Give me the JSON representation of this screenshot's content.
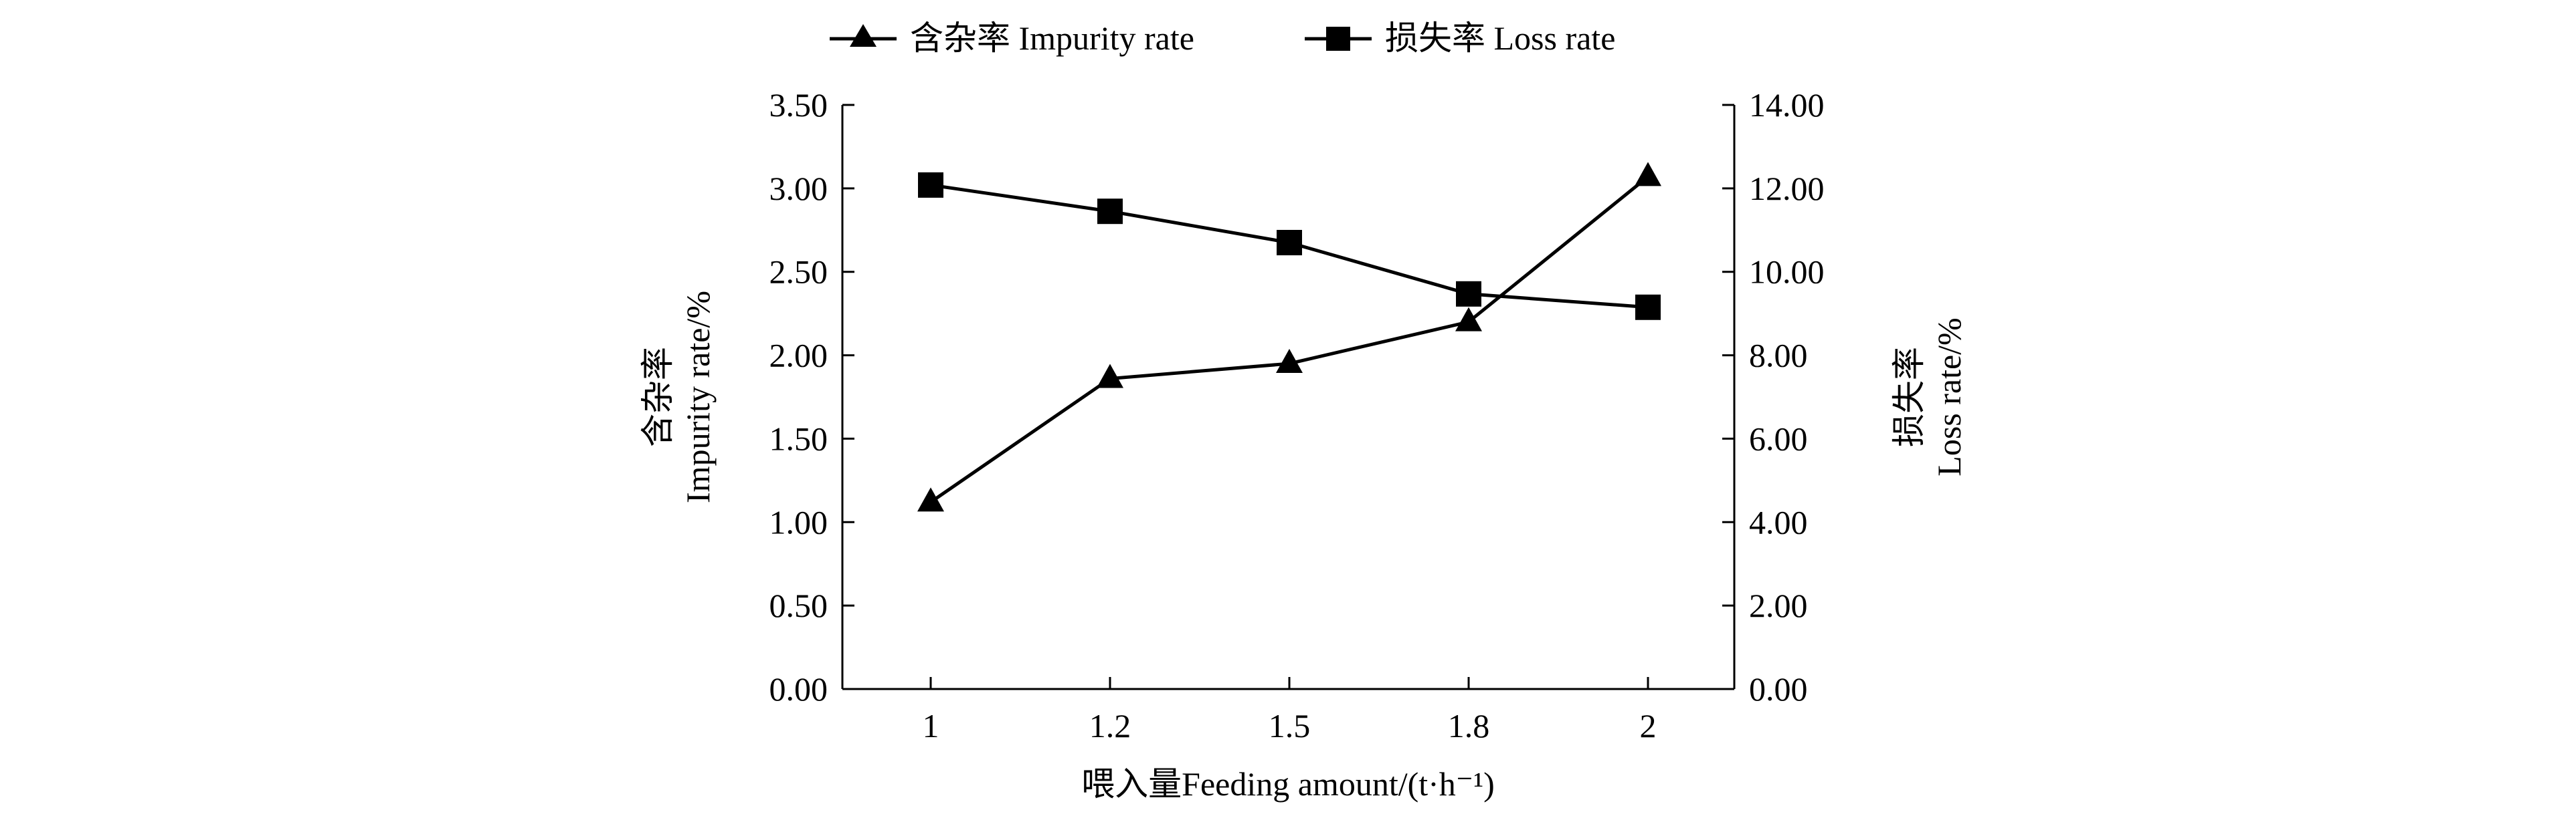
{
  "chart_data": {
    "type": "line",
    "title": "",
    "xlabel": "喂入量Feeding amount/(t·h⁻¹)",
    "ylabel_left": [
      "含杂率",
      "Impurity rate/%"
    ],
    "ylabel_right": [
      "损失率",
      "Loss rate/%"
    ],
    "categories": [
      "1",
      "1.2",
      "1.5",
      "1.8",
      "2"
    ],
    "ylim_left": [
      0,
      3.5
    ],
    "ylim_right": [
      0,
      14
    ],
    "yticks_left": [
      "0.00",
      "0.50",
      "1.00",
      "1.50",
      "2.00",
      "2.50",
      "3.00",
      "3.50"
    ],
    "yticks_right": [
      "0.00",
      "2.00",
      "4.00",
      "6.00",
      "8.00",
      "10.00",
      "12.00",
      "14.00"
    ],
    "legend_position": "top-center",
    "grid": false,
    "series": [
      {
        "name": "含杂率 Impurity rate",
        "axis": "left",
        "marker": "triangle",
        "values": [
          1.12,
          1.86,
          1.95,
          2.2,
          3.07
        ]
      },
      {
        "name": "损失率 Loss rate",
        "axis": "right",
        "marker": "square",
        "values": [
          12.08,
          11.45,
          10.7,
          9.47,
          9.15
        ]
      }
    ]
  }
}
